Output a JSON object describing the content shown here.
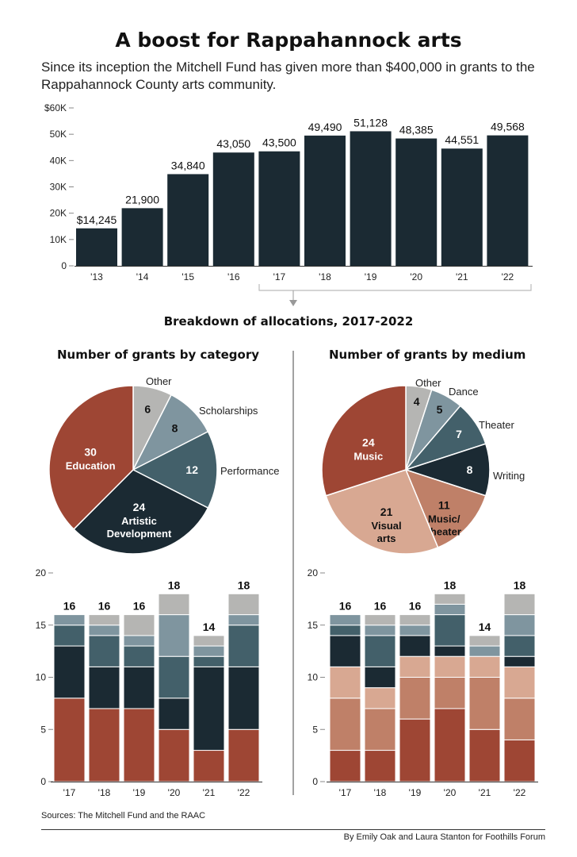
{
  "header": {
    "title": "A boost for Rappahannock arts",
    "subtitle": "Since its inception the Mitchell Fund has given more than $400,000 in grants to the Rappahannock County arts community.",
    "breakdown_title": "Breakdown of allocations, 2017-2022"
  },
  "footer": {
    "sources": "Sources: The Mitchell Fund and the RAAC",
    "byline": "By Emily Oak and Laura Stanton for Foothills Forum"
  },
  "colors": {
    "dark": "#1b2a33",
    "rust": "#9e4634",
    "slate": "#43606a",
    "blue_gray": "#7f959f",
    "light_gray": "#b5b5b3",
    "terracotta": "#bf8068",
    "peach": "#d8a892"
  },
  "chart_data": [
    {
      "id": "annual-grants",
      "type": "bar",
      "categories": [
        "'13",
        "'14",
        "'15",
        "'16",
        "'17",
        "'18",
        "'19",
        "'20",
        "'21",
        "'22"
      ],
      "values": [
        14245,
        21900,
        34840,
        43050,
        43500,
        49490,
        51128,
        48385,
        44551,
        49568
      ],
      "value_labels": [
        "$14,245",
        "21,900",
        "34,840",
        "43,050",
        "43,500",
        "49,490",
        "51,128",
        "48,385",
        "44,551",
        "49,568"
      ],
      "ylim": [
        0,
        60000
      ],
      "yticks": [
        0,
        10000,
        20000,
        30000,
        40000,
        50000,
        60000
      ],
      "ytick_labels": [
        "0",
        "10K",
        "20K",
        "30K",
        "40K",
        "50K",
        "$60K"
      ],
      "color": "#1b2a33"
    },
    {
      "id": "grants-by-category",
      "type": "pie",
      "title": "Number of grants by category",
      "slices": [
        {
          "label": "Other",
          "value": 6,
          "color": "#b5b5b3"
        },
        {
          "label": "Scholarships",
          "value": 8,
          "color": "#7f959f"
        },
        {
          "label": "Performance",
          "value": 12,
          "color": "#43606a"
        },
        {
          "label": "Artistic Development",
          "value": 24,
          "color": "#1b2a33"
        },
        {
          "label": "Education",
          "value": 30,
          "color": "#9e4634"
        }
      ]
    },
    {
      "id": "grants-by-medium",
      "type": "pie",
      "title": "Number of grants by medium",
      "slices": [
        {
          "label": "Other",
          "value": 4,
          "color": "#b5b5b3"
        },
        {
          "label": "Dance",
          "value": 5,
          "color": "#7f959f"
        },
        {
          "label": "Theater",
          "value": 7,
          "color": "#43606a"
        },
        {
          "label": "Writing",
          "value": 8,
          "color": "#1b2a33"
        },
        {
          "label": "Music/ theater",
          "value": 11,
          "color": "#bf8068"
        },
        {
          "label": "Visual arts",
          "value": 21,
          "color": "#d8a892"
        },
        {
          "label": "Music",
          "value": 24,
          "color": "#9e4634"
        }
      ]
    },
    {
      "id": "category-by-year",
      "type": "bar",
      "stacked": true,
      "categories": [
        "'17",
        "'18",
        "'19",
        "'20",
        "'21",
        "'22"
      ],
      "ylim": [
        0,
        20
      ],
      "yticks": [
        0,
        5,
        10,
        15,
        20
      ],
      "totals": [
        16,
        16,
        16,
        18,
        14,
        18
      ],
      "series": [
        {
          "label": "Education",
          "color": "#9e4634",
          "values": [
            8,
            7,
            7,
            5,
            3,
            5
          ]
        },
        {
          "label": "Artistic Development",
          "color": "#1b2a33",
          "values": [
            5,
            4,
            4,
            3,
            8,
            6
          ]
        },
        {
          "label": "Performance",
          "color": "#43606a",
          "values": [
            2,
            3,
            2,
            4,
            1,
            4
          ]
        },
        {
          "label": "Scholarships",
          "color": "#7f959f",
          "values": [
            1,
            1,
            1,
            4,
            1,
            1
          ]
        },
        {
          "label": "Other",
          "color": "#b5b5b3",
          "values": [
            0,
            1,
            2,
            2,
            1,
            2
          ]
        }
      ]
    },
    {
      "id": "medium-by-year",
      "type": "bar",
      "stacked": true,
      "categories": [
        "'17",
        "'18",
        "'19",
        "'20",
        "'21",
        "'22"
      ],
      "ylim": [
        0,
        20
      ],
      "yticks": [
        0,
        5,
        10,
        15,
        20
      ],
      "totals": [
        16,
        16,
        16,
        18,
        14,
        18
      ],
      "series": [
        {
          "label": "Music",
          "color": "#9e4634",
          "values": [
            3,
            3,
            6,
            7,
            5,
            4
          ]
        },
        {
          "label": "Visual arts",
          "color": "#bf8068",
          "values": [
            5,
            4,
            4,
            3,
            5,
            4
          ]
        },
        {
          "label": "Music/ theater",
          "color": "#d8a892",
          "values": [
            3,
            2,
            2,
            2,
            2,
            3
          ]
        },
        {
          "label": "Writing",
          "color": "#1b2a33",
          "values": [
            3,
            2,
            2,
            1,
            0,
            1
          ]
        },
        {
          "label": "Theater",
          "color": "#43606a",
          "values": [
            1,
            3,
            0,
            3,
            0,
            2
          ]
        },
        {
          "label": "Dance",
          "color": "#7f959f",
          "values": [
            1,
            1,
            1,
            1,
            1,
            2
          ]
        },
        {
          "label": "Other",
          "color": "#b5b5b3",
          "values": [
            0,
            1,
            1,
            1,
            1,
            2
          ]
        }
      ]
    }
  ]
}
